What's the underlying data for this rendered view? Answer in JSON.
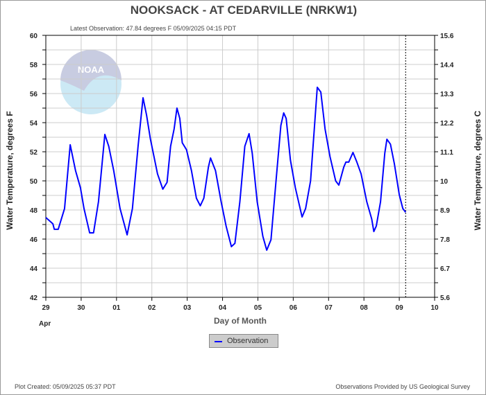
{
  "chart_data": {
    "type": "line",
    "title": "NOOKSACK - AT CEDARVILLE  (NRKW1)",
    "subtitle": "Latest Observation: 47.84 degrees F 05/09/2025 04:15 PDT",
    "xlabel": "Day of Month",
    "ylabel": "Water Temperature, degrees F",
    "ylabel_right": "Water Temperature, degrees C",
    "x_ticks": [
      "29",
      "30",
      "01",
      "02",
      "03",
      "04",
      "05",
      "06",
      "07",
      "08",
      "09",
      "10"
    ],
    "x_month_label": "Apr",
    "y_ticks": [
      "60",
      "58",
      "56",
      "54",
      "52",
      "50",
      "48",
      "46",
      "44",
      "42"
    ],
    "y_ticks_right": [
      "15.6",
      "14.4",
      "13.3",
      "12.2",
      "11.1",
      "10",
      "8.9",
      "7.8",
      "6.7",
      "5.6"
    ],
    "ylim": [
      42,
      60
    ],
    "xlim_days_since_apr29": [
      0,
      11
    ],
    "latest_observation_day": 10.18,
    "grid": true,
    "legend": "bottom-center",
    "series": [
      {
        "name": "Observation",
        "color": "#0000ff",
        "x": [
          0,
          0.2,
          0.24,
          0.35,
          0.53,
          0.69,
          0.84,
          0.98,
          1.08,
          1.24,
          1.35,
          1.49,
          1.67,
          1.78,
          1.92,
          2.1,
          2.3,
          2.45,
          2.61,
          2.75,
          2.85,
          2.96,
          3.16,
          3.31,
          3.43,
          3.53,
          3.63,
          3.71,
          3.79,
          3.86,
          3.98,
          4.12,
          4.26,
          4.37,
          4.47,
          4.6,
          4.66,
          4.8,
          4.96,
          5.1,
          5.25,
          5.35,
          5.49,
          5.63,
          5.75,
          5.84,
          5.98,
          6.14,
          6.25,
          6.37,
          6.53,
          6.65,
          6.73,
          6.8,
          6.92,
          7.06,
          7.25,
          7.35,
          7.49,
          7.61,
          7.68,
          7.78,
          7.9,
          8.04,
          8.2,
          8.29,
          8.43,
          8.49,
          8.57,
          8.69,
          8.8,
          8.92,
          9.08,
          9.22,
          9.28,
          9.35,
          9.47,
          9.59,
          9.65,
          9.75,
          9.86,
          10.0,
          10.1,
          10.18
        ],
        "y": [
          47.48,
          47.05,
          46.67,
          46.67,
          48.1,
          52.48,
          50.71,
          49.52,
          48.1,
          46.43,
          46.43,
          48.57,
          53.19,
          52.38,
          50.71,
          48.1,
          46.29,
          48.1,
          52.38,
          55.71,
          54.52,
          52.86,
          50.48,
          49.43,
          49.9,
          52.38,
          53.57,
          55.0,
          54.29,
          52.62,
          52.14,
          50.71,
          48.81,
          48.29,
          48.81,
          50.95,
          51.57,
          50.71,
          48.57,
          46.9,
          45.48,
          45.71,
          48.57,
          52.38,
          53.24,
          51.9,
          48.57,
          46.19,
          45.24,
          45.95,
          50.48,
          53.81,
          54.67,
          54.29,
          51.43,
          49.52,
          47.52,
          48.1,
          50.0,
          54.05,
          56.43,
          56.1,
          53.57,
          51.67,
          50.0,
          49.71,
          50.95,
          51.29,
          51.29,
          51.95,
          51.29,
          50.48,
          48.57,
          47.38,
          46.52,
          46.9,
          48.57,
          51.9,
          52.86,
          52.52,
          51.19,
          49.05,
          48.1,
          47.84
        ]
      }
    ]
  },
  "legend": {
    "label": "Observation"
  },
  "footer": {
    "created": "Plot Created: 05/09/2025 05:37 PDT",
    "credit": "Observations Provided by US Geological Survey"
  },
  "logo": {
    "text": "NOAA"
  }
}
